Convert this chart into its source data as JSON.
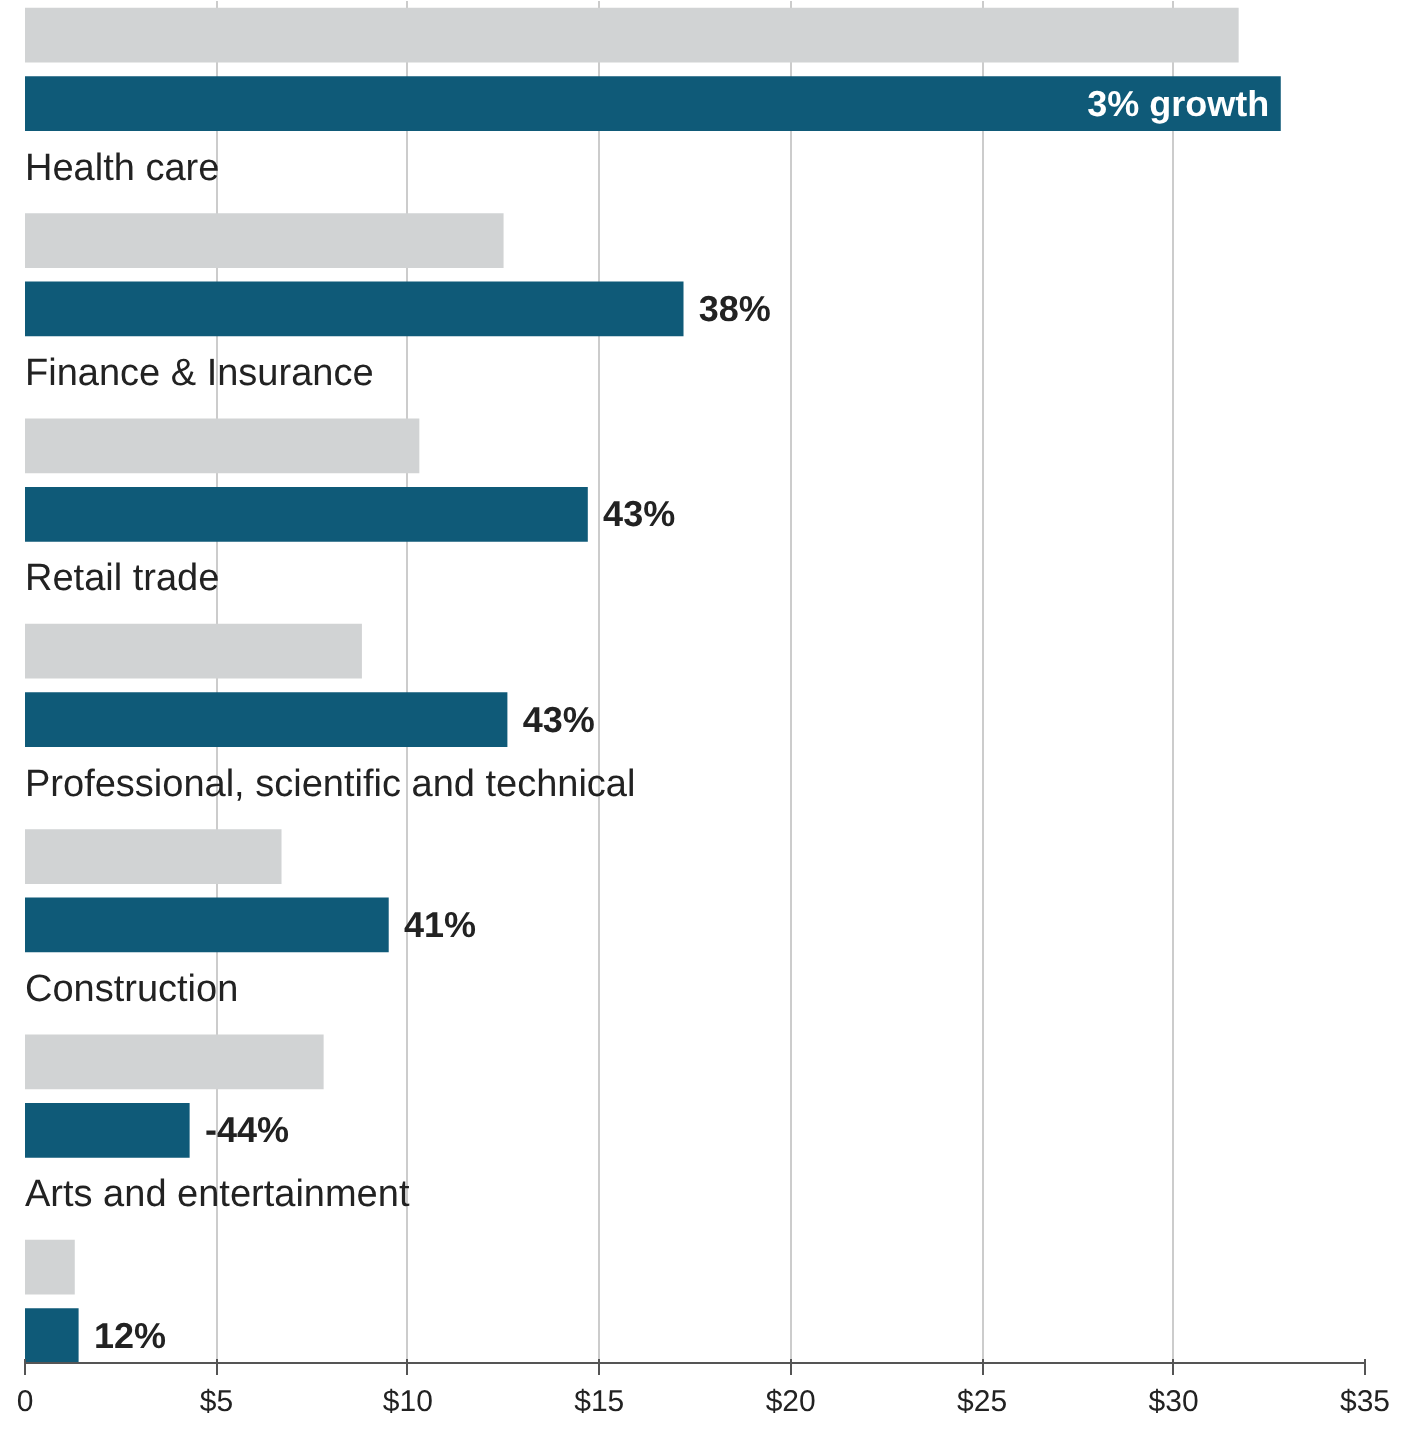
{
  "chart_data": {
    "type": "bar",
    "orientation": "horizontal",
    "categories": [
      null,
      "Health care",
      "Finance & Insurance",
      "Retail trade",
      "Professional, scientific and technical",
      "Construction",
      "Arts and entertainment"
    ],
    "series": [
      {
        "color": "#d1d3d4",
        "values": [
          31.7,
          12.5,
          10.3,
          8.8,
          6.7,
          7.8,
          1.3
        ]
      },
      {
        "color": "#0f5a78",
        "values": [
          32.8,
          17.2,
          14.7,
          12.6,
          9.5,
          4.3,
          1.4
        ]
      }
    ],
    "annotations": [
      "3% growth",
      "38%",
      "43%",
      "43%",
      "41%",
      "-44%",
      "12%"
    ],
    "xlim": [
      0,
      35
    ],
    "xticks": [
      0,
      {
        "value": 5,
        "label": "$5"
      },
      {
        "value": 10,
        "label": "$10"
      },
      {
        "value": 15,
        "label": "$15"
      },
      {
        "value": 20,
        "label": "$20"
      },
      {
        "value": 25,
        "label": "$25"
      },
      {
        "value": 30,
        "label": "$30"
      },
      {
        "value": 35,
        "label": "$35"
      }
    ],
    "grid": "x",
    "tick_labels": "x"
  }
}
